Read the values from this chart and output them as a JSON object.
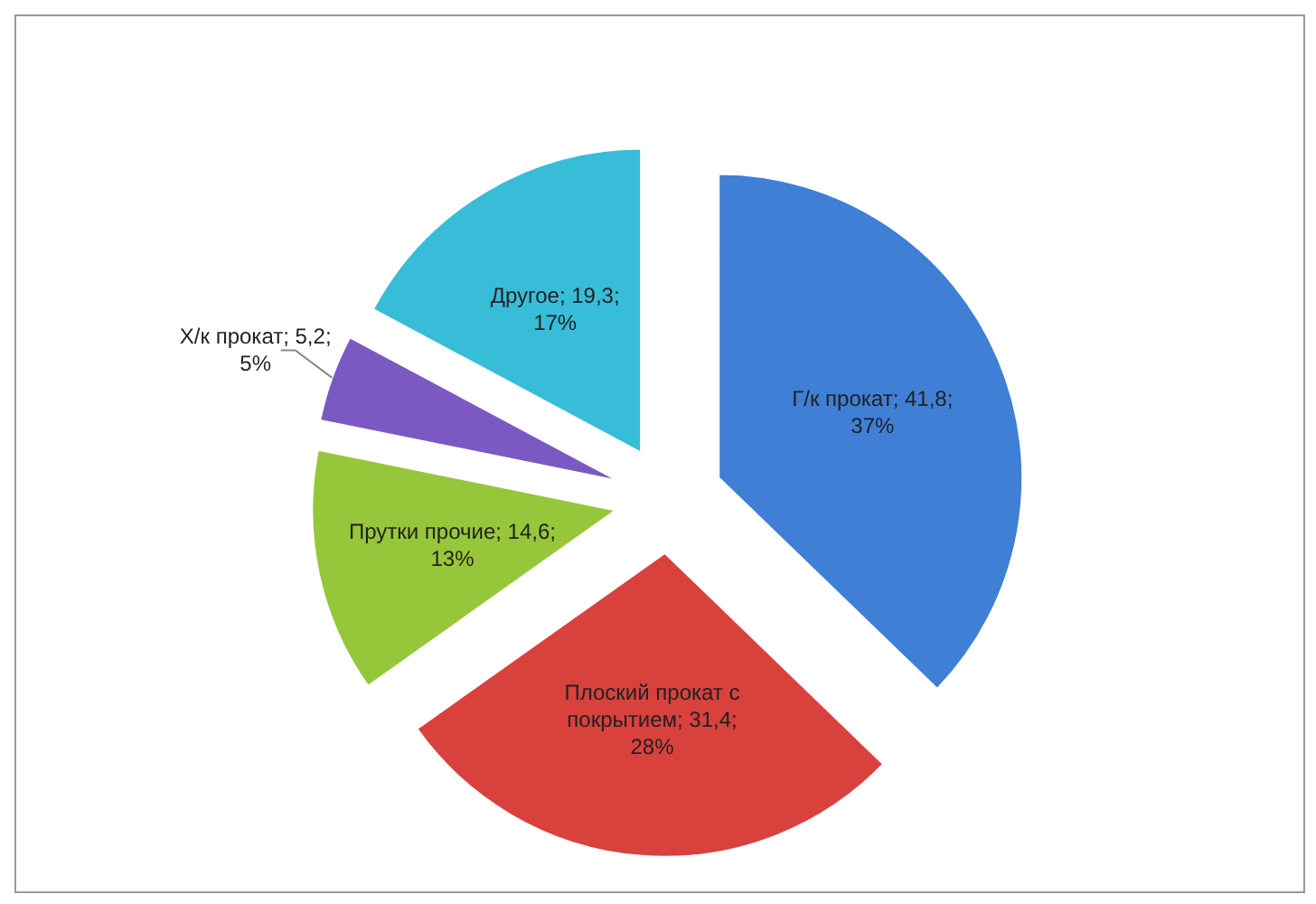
{
  "chart_data": {
    "type": "pie",
    "categories": [
      "Г/к прокат",
      "Плоский прокат с покрытием",
      "Прутки прочие",
      "Х/к прокат",
      "Другое"
    ],
    "values": [
      41.8,
      31.4,
      14.6,
      5.2,
      19.3
    ],
    "value_labels": [
      "; 41,8; 37%",
      "; 31,4; 28%",
      "; 14,6; 13%",
      "; 5,2; 5%",
      "; 19,3; 17%"
    ],
    "colors": [
      "#3f7fd6",
      "#d9413d",
      "#96c73a",
      "#7b58c2",
      "#38bdd9"
    ],
    "legend": false
  }
}
